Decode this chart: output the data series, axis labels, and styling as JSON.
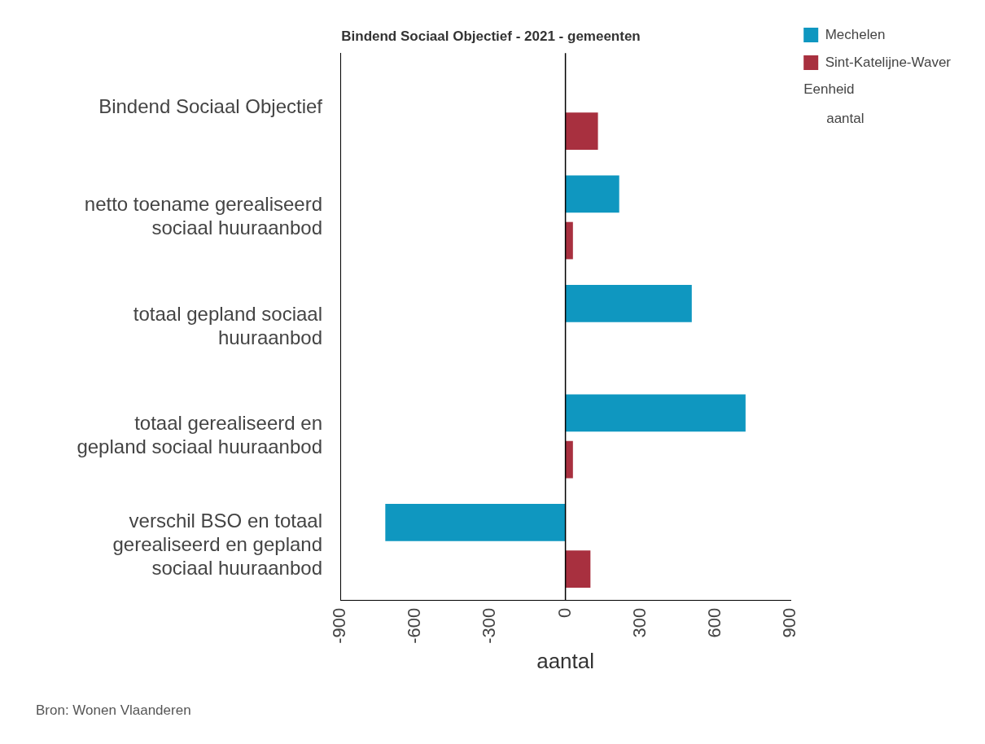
{
  "chart_data": {
    "type": "bar",
    "orientation": "horizontal",
    "title": "Bindend Sociaal Objectief - 2021 - gemeenten",
    "xlabel": "aantal",
    "categories": [
      "Bindend Sociaal Objectief",
      "netto toename gerealiseerd sociaal huuraanbod",
      "totaal gepland sociaal huuraanbod",
      "totaal gerealiseerd en gepland sociaal huuraanbod",
      "verschil BSO en totaal gerealiseerd en gepland sociaal huuraanbod"
    ],
    "series": [
      {
        "name": "Mechelen",
        "color": "#0f97c0",
        "values": [
          null,
          215,
          505,
          720,
          -720
        ]
      },
      {
        "name": "Sint-Katelijne-Waver",
        "color": "#a8303f",
        "values": [
          130,
          30,
          null,
          30,
          100
        ]
      }
    ],
    "xlim": [
      -900,
      900
    ],
    "xticks": [
      -900,
      -600,
      -300,
      0,
      300,
      600,
      900
    ],
    "grid": false,
    "legend": "top right",
    "ref_lines": [
      {
        "axis": "x",
        "value": 0,
        "color": "#000000"
      }
    ],
    "annotations": [
      "Eenheid",
      "aantal",
      "Bron: Wonen Vlaanderen"
    ]
  }
}
